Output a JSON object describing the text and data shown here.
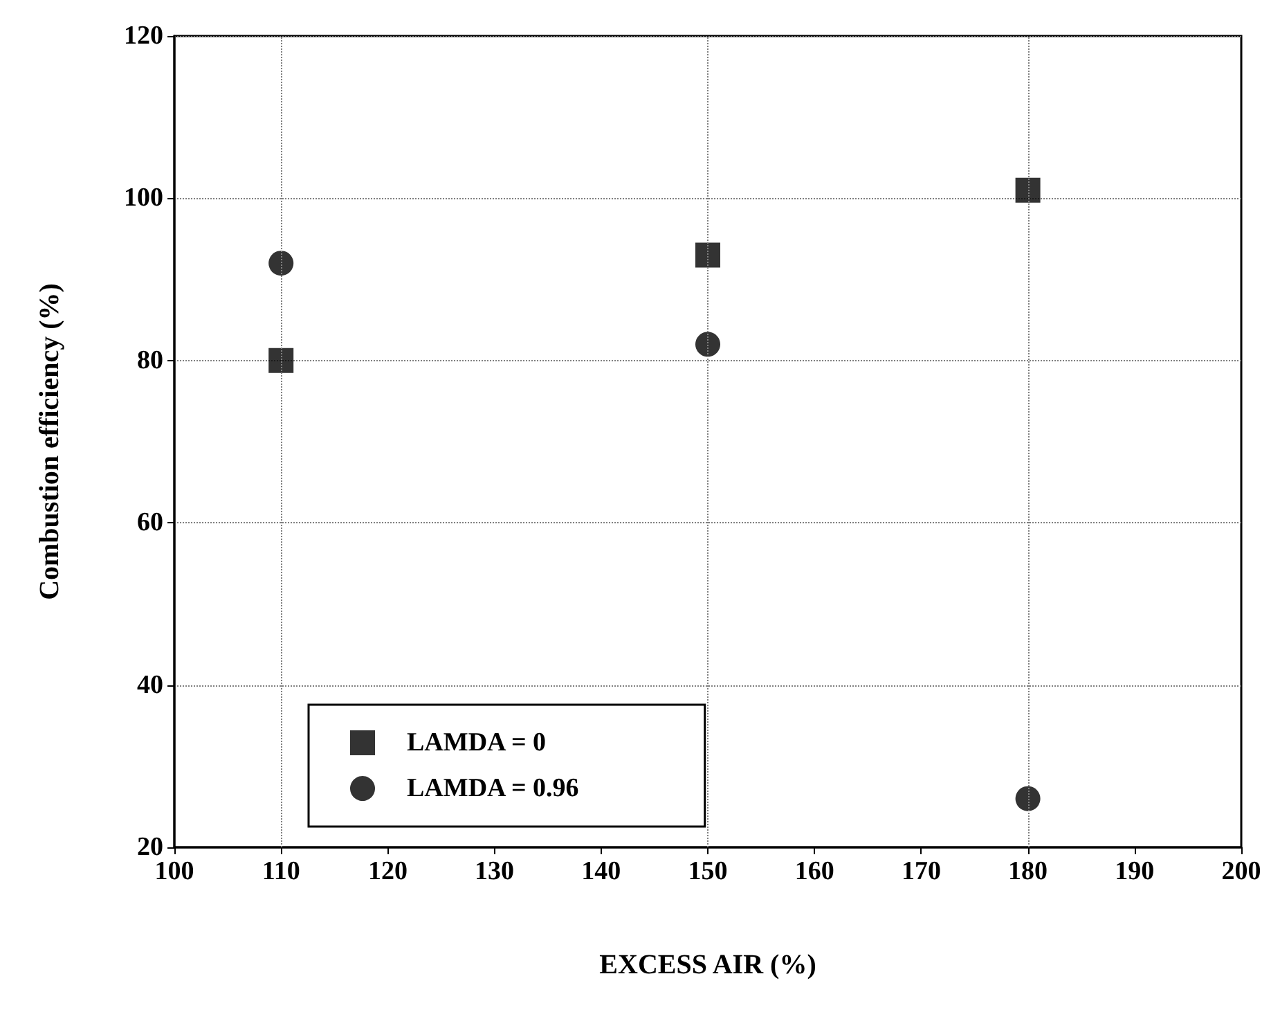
{
  "chart_data": {
    "type": "scatter",
    "xlabel": "EXCESS AIR (%)",
    "ylabel": "Combustion efficiency (%)",
    "xlim": [
      100,
      200
    ],
    "xticks": [
      100,
      110,
      120,
      130,
      140,
      150,
      160,
      170,
      180,
      190,
      200
    ],
    "ylim": [
      20,
      120
    ],
    "yticks": [
      20,
      40,
      60,
      80,
      100,
      120
    ],
    "grid": "y",
    "legend": "bottom left",
    "ref_lines": [
      {
        "axis": "x",
        "value": 110,
        "line_style": "dotted",
        "color": "#808080"
      },
      {
        "axis": "x",
        "value": 150,
        "line_style": "dotted",
        "color": "#808080"
      },
      {
        "axis": "x",
        "value": 180,
        "line_style": "dotted",
        "color": "#808080"
      }
    ],
    "series": [
      {
        "name": "LAMDA = 0",
        "color": "#000000",
        "marker": "square",
        "x": [
          110,
          150,
          180
        ],
        "values": [
          80,
          93,
          101
        ]
      },
      {
        "name": "LAMDA = 0.96",
        "color": "#000000",
        "marker": "circle",
        "x": [
          110,
          150,
          180
        ],
        "values": [
          92,
          82,
          26
        ]
      }
    ]
  }
}
